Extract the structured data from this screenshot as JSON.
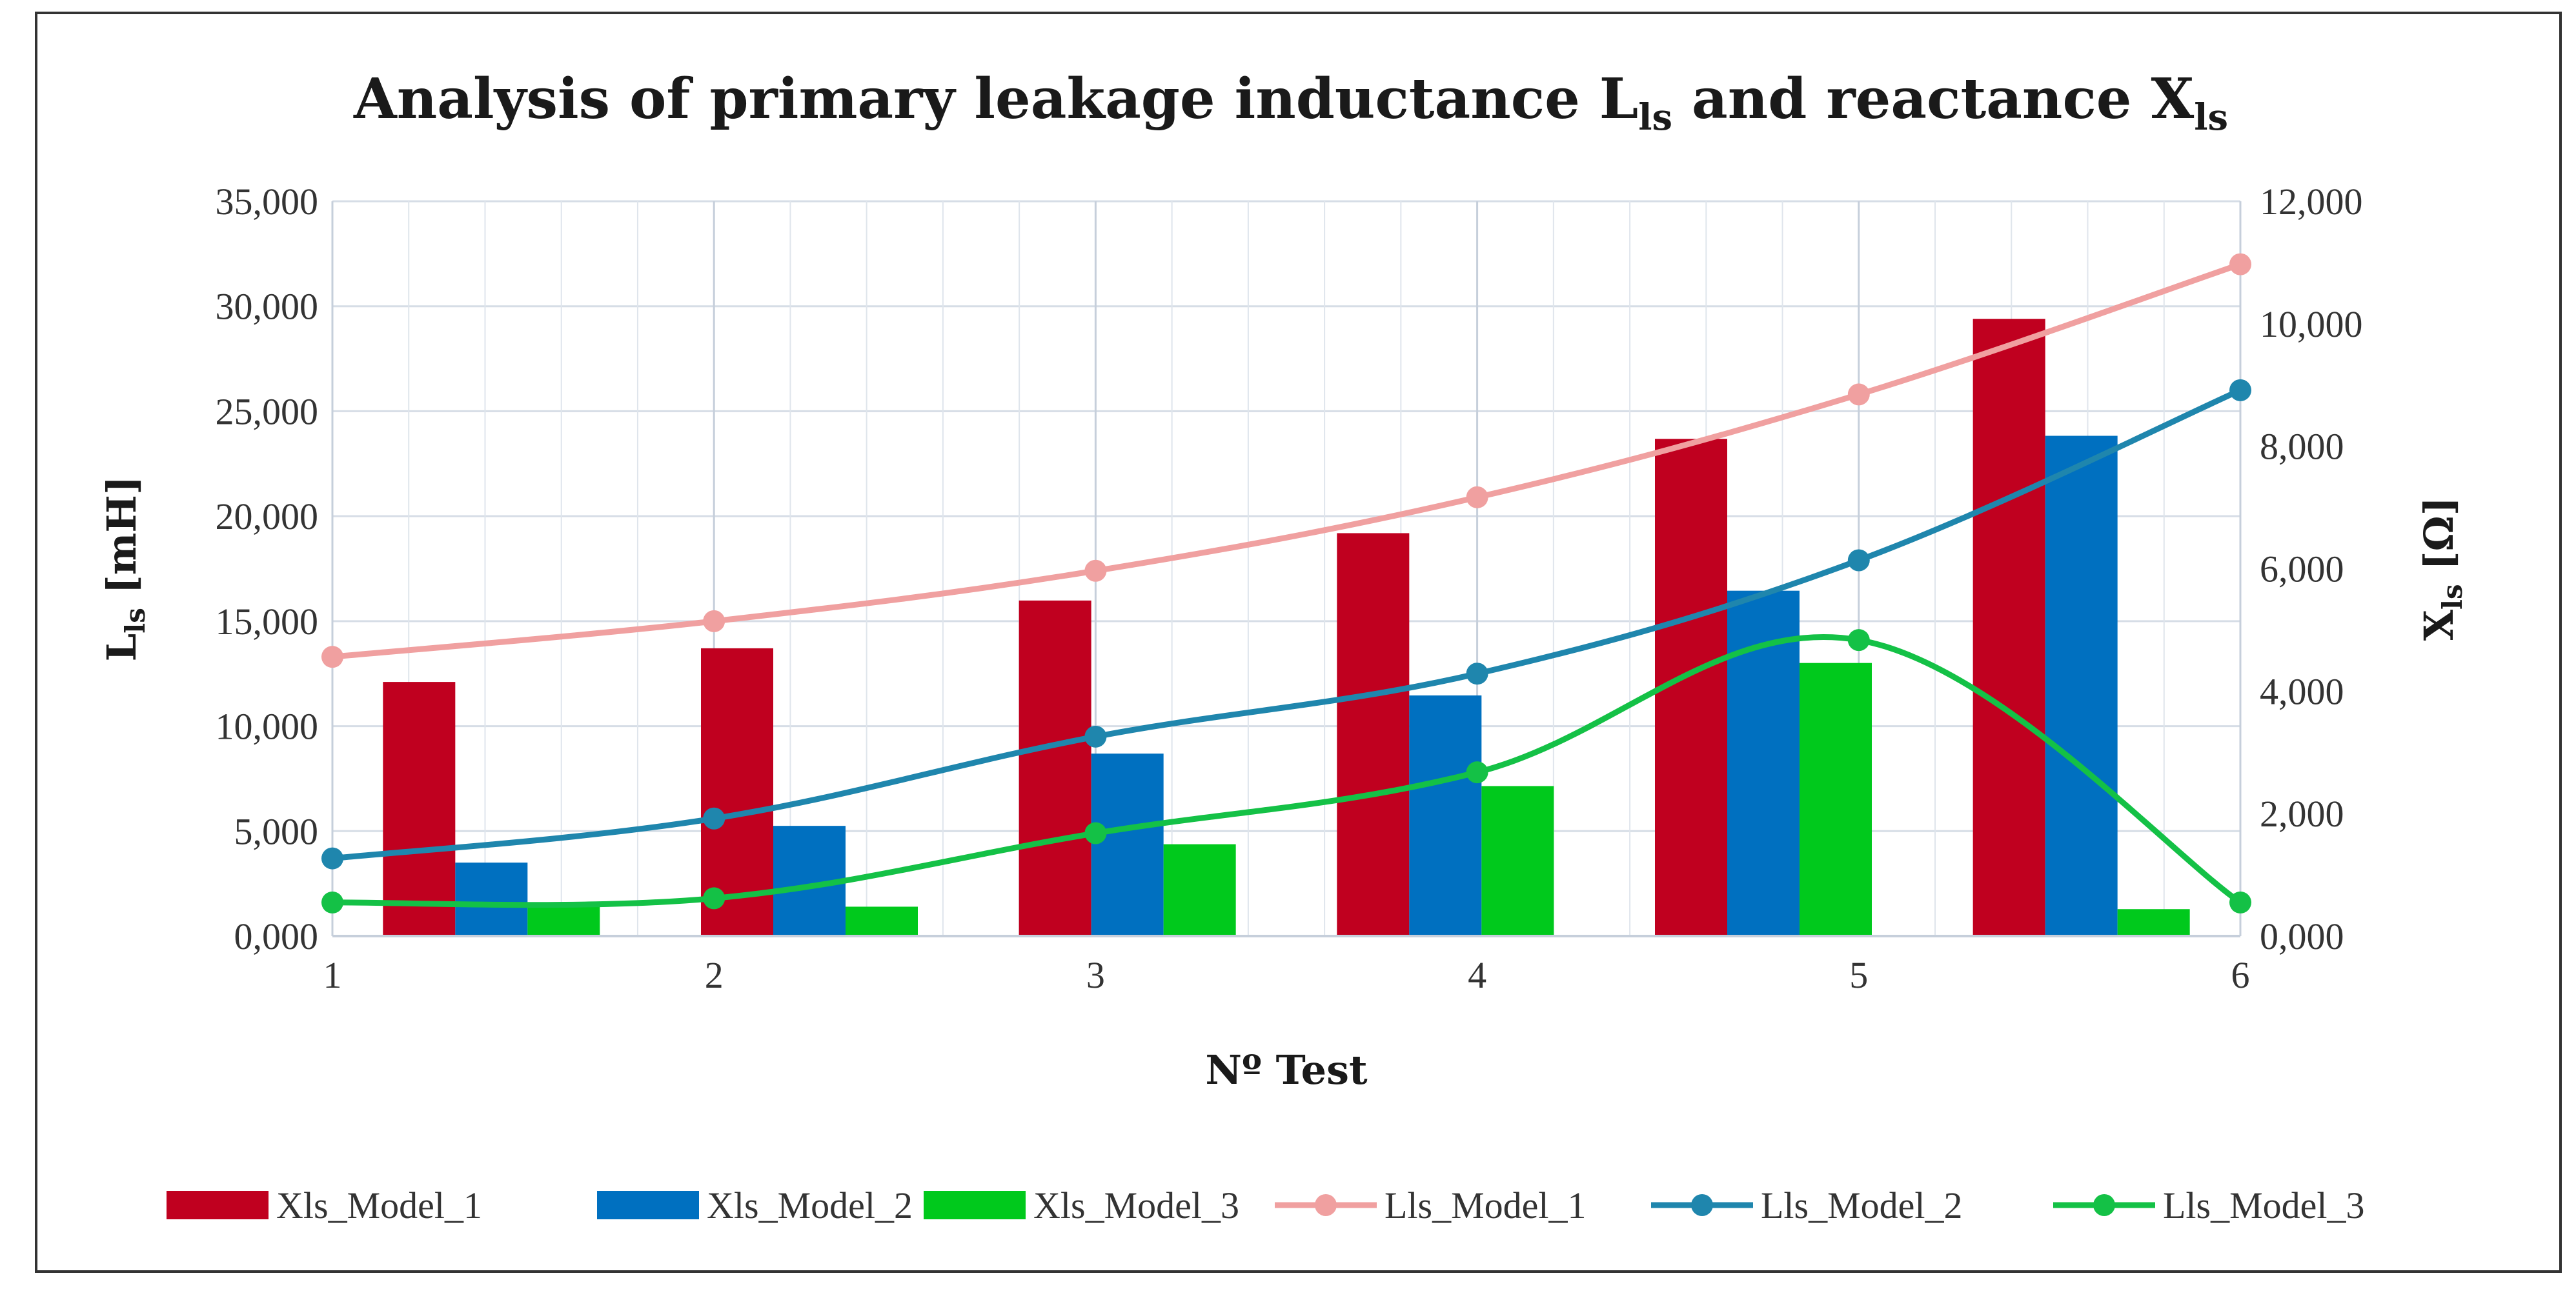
{
  "chart_data": {
    "type": "bar+line",
    "title": {
      "main": "Analysis of primary leakage inductance L",
      "sub1": "ls",
      "mid": " and reactance X",
      "sub2": "ls"
    },
    "xlabel": "Nº Test",
    "ylabel_left": {
      "main": "L",
      "sub": "ls",
      "unit": " [mH]"
    },
    "ylabel_right": {
      "main": "X",
      "sub": "ls",
      "unit": " [Ω]"
    },
    "x_ticks": [
      "1",
      "2",
      "3",
      "4",
      "5",
      "6"
    ],
    "y_left": {
      "min": 0,
      "max": 35000,
      "step": 5000,
      "tick_labels": [
        "0,000",
        "5,000",
        "10,000",
        "15,000",
        "20,000",
        "25,000",
        "30,000",
        "35,000"
      ]
    },
    "y_right": {
      "min": 0,
      "max": 12000,
      "step": 2000,
      "tick_labels": [
        "0,000",
        "2,000",
        "4,000",
        "6,000",
        "8,000",
        "10,000",
        "12,000"
      ]
    },
    "grid": true,
    "legend_position": "bottom",
    "bar_series": [
      {
        "name": "Xls_Model_1",
        "color": "#c0001f",
        "axis": "right",
        "values": [
          4150,
          4700,
          5480,
          6580,
          8120,
          10080
        ]
      },
      {
        "name": "Xls_Model_2",
        "color": "#0070c0",
        "axis": "right",
        "values": [
          1200,
          1800,
          2980,
          3930,
          5640,
          8170
        ]
      },
      {
        "name": "Xls_Model_3",
        "color": "#00c91c",
        "axis": "right",
        "values": [
          480,
          480,
          1500,
          2450,
          4460,
          440
        ]
      }
    ],
    "line_series": [
      {
        "name": "Lls_Model_1",
        "color": "#f0a0a0",
        "axis": "left",
        "values": [
          13300,
          15000,
          17400,
          20900,
          25800,
          32000
        ]
      },
      {
        "name": "Lls_Model_2",
        "color": "#1f86ad",
        "axis": "left",
        "values": [
          3700,
          5600,
          9500,
          12500,
          17900,
          26000
        ]
      },
      {
        "name": "Lls_Model_3",
        "color": "#14c146",
        "axis": "left",
        "values": [
          1600,
          1800,
          4900,
          7800,
          14100,
          1600
        ]
      }
    ]
  }
}
